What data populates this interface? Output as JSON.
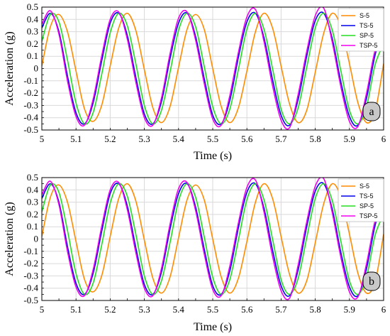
{
  "chart_data": [
    {
      "type": "line",
      "panel_label": "a",
      "xlabel": "Time (s)",
      "ylabel": "Acceleration (g)",
      "xlim": [
        5,
        6
      ],
      "ylim": [
        -0.5,
        0.5
      ],
      "xticks": [
        "5",
        "5.1",
        "5.2",
        "5.3",
        "5.4",
        "5.5",
        "5.6",
        "5.7",
        "5.8",
        "5.9",
        "6"
      ],
      "yticks": [
        "0.5",
        "0.4",
        "0.3",
        "0.2",
        "0.1",
        "0",
        "-0.1",
        "-0.2",
        "-0.3",
        "-0.4",
        "-0.5"
      ],
      "grid": true,
      "legend_position": "top-right",
      "series": [
        {
          "name": "S-5",
          "color": "#ff8c00",
          "x": [
            5.0,
            5.025,
            5.05,
            5.075,
            5.1,
            5.125,
            5.15,
            5.175,
            5.2,
            5.225,
            5.25,
            5.275,
            5.3,
            5.325,
            5.35,
            5.375,
            5.4,
            5.425,
            5.45,
            5.475,
            5.5,
            5.525,
            5.55,
            5.575,
            5.6,
            5.625,
            5.65,
            5.675,
            5.7,
            5.725,
            5.75,
            5.775,
            5.8,
            5.825,
            5.85,
            5.875,
            5.9,
            5.925,
            5.95,
            5.975,
            6.0
          ],
          "y": [
            0.02,
            0.34,
            0.44,
            0.3,
            -0.02,
            -0.33,
            -0.43,
            -0.3,
            0.02,
            0.33,
            0.45,
            0.31,
            -0.01,
            -0.32,
            -0.44,
            -0.31,
            0.01,
            0.32,
            0.44,
            0.32,
            0.0,
            -0.31,
            -0.44,
            -0.32,
            -0.02,
            0.3,
            0.45,
            0.33,
            0.02,
            -0.29,
            -0.44,
            -0.34,
            -0.03,
            0.29,
            0.45,
            0.34,
            0.04,
            -0.28,
            -0.44,
            -0.35,
            0.04
          ]
        },
        {
          "name": "TS-5",
          "color": "#0000ee",
          "x": [
            5.0,
            5.025,
            5.05,
            5.075,
            5.1,
            5.125,
            5.15,
            5.175,
            5.2,
            5.225,
            5.25,
            5.275,
            5.3,
            5.325,
            5.35,
            5.375,
            5.4,
            5.425,
            5.45,
            5.475,
            5.5,
            5.525,
            5.55,
            5.575,
            5.6,
            5.625,
            5.65,
            5.675,
            5.7,
            5.725,
            5.75,
            5.775,
            5.8,
            5.825,
            5.85,
            5.875,
            5.9,
            5.925,
            5.95,
            5.975,
            6.0
          ],
          "y": [
            0.33,
            0.45,
            0.3,
            -0.06,
            -0.36,
            -0.45,
            -0.28,
            0.06,
            0.37,
            0.45,
            0.27,
            -0.07,
            -0.37,
            -0.45,
            -0.27,
            0.08,
            0.37,
            0.45,
            0.26,
            -0.08,
            -0.38,
            -0.45,
            -0.26,
            0.09,
            0.38,
            0.45,
            0.25,
            -0.09,
            -0.38,
            -0.46,
            -0.25,
            0.1,
            0.39,
            0.45,
            0.24,
            -0.11,
            -0.39,
            -0.46,
            -0.24,
            0.11,
            0.33
          ]
        },
        {
          "name": "SP-5",
          "color": "#22dd22",
          "x": [
            5.0,
            5.025,
            5.05,
            5.075,
            5.1,
            5.125,
            5.15,
            5.175,
            5.2,
            5.225,
            5.25,
            5.275,
            5.3,
            5.325,
            5.35,
            5.375,
            5.4,
            5.425,
            5.45,
            5.475,
            5.5,
            5.525,
            5.55,
            5.575,
            5.6,
            5.625,
            5.65,
            5.675,
            5.7,
            5.725,
            5.75,
            5.775,
            5.8,
            5.825,
            5.85,
            5.875,
            5.9,
            5.925,
            5.95,
            5.975,
            6.0
          ],
          "y": [
            0.22,
            0.44,
            0.38,
            0.07,
            -0.28,
            -0.45,
            -0.36,
            -0.05,
            0.29,
            0.45,
            0.35,
            0.04,
            -0.3,
            -0.45,
            -0.34,
            -0.03,
            0.31,
            0.45,
            0.34,
            0.02,
            -0.31,
            -0.45,
            -0.33,
            -0.01,
            0.32,
            0.45,
            0.32,
            0.0,
            -0.33,
            -0.45,
            -0.32,
            0.01,
            0.33,
            0.45,
            0.31,
            -0.02,
            -0.34,
            -0.45,
            -0.31,
            0.03,
            0.2
          ]
        },
        {
          "name": "TSP-5",
          "color": "#ee00ee",
          "x": [
            5.0,
            5.025,
            5.05,
            5.075,
            5.1,
            5.125,
            5.15,
            5.175,
            5.2,
            5.225,
            5.25,
            5.275,
            5.3,
            5.325,
            5.35,
            5.375,
            5.4,
            5.425,
            5.45,
            5.475,
            5.5,
            5.525,
            5.55,
            5.575,
            5.6,
            5.625,
            5.65,
            5.675,
            5.7,
            5.725,
            5.75,
            5.775,
            5.8,
            5.825,
            5.85,
            5.875,
            5.9,
            5.925,
            5.95,
            5.975,
            6.0
          ],
          "y": [
            0.36,
            0.47,
            0.28,
            -0.1,
            -0.39,
            -0.46,
            -0.25,
            0.1,
            0.4,
            0.46,
            0.24,
            -0.11,
            -0.4,
            -0.46,
            -0.24,
            0.12,
            0.41,
            0.46,
            0.23,
            -0.12,
            -0.41,
            -0.46,
            -0.22,
            0.13,
            0.42,
            0.48,
            0.22,
            -0.14,
            -0.42,
            -0.48,
            -0.21,
            0.14,
            0.43,
            0.49,
            0.21,
            -0.15,
            -0.43,
            -0.47,
            -0.2,
            0.15,
            0.35
          ]
        }
      ]
    },
    {
      "type": "line",
      "panel_label": "b",
      "xlabel": "Time (s)",
      "ylabel": "Acceleration (g)",
      "xlim": [
        5,
        6
      ],
      "ylim": [
        -0.5,
        0.5
      ],
      "xticks": [
        "5",
        "5.1",
        "5.2",
        "5.3",
        "5.4",
        "5.5",
        "5.6",
        "5.7",
        "5.8",
        "5.9",
        "6"
      ],
      "yticks": [
        "0.5",
        "0.4",
        "0.3",
        "0.2",
        "0.1",
        "0",
        "-0.1",
        "-0.2",
        "-0.3",
        "-0.4",
        "-0.5"
      ],
      "grid": true,
      "legend_position": "top-right",
      "series": [
        {
          "name": "S-5",
          "color": "#ff8c00",
          "x": [
            5.0,
            5.025,
            5.05,
            5.075,
            5.1,
            5.125,
            5.15,
            5.175,
            5.2,
            5.225,
            5.25,
            5.275,
            5.3,
            5.325,
            5.35,
            5.375,
            5.4,
            5.425,
            5.45,
            5.475,
            5.5,
            5.525,
            5.55,
            5.575,
            5.6,
            5.625,
            5.65,
            5.675,
            5.7,
            5.725,
            5.75,
            5.775,
            5.8,
            5.825,
            5.85,
            5.875,
            5.9,
            5.925,
            5.95,
            5.975,
            6.0
          ],
          "y": [
            0.02,
            0.34,
            0.44,
            0.3,
            -0.02,
            -0.33,
            -0.43,
            -0.3,
            0.02,
            0.33,
            0.45,
            0.31,
            -0.01,
            -0.32,
            -0.44,
            -0.31,
            0.01,
            0.32,
            0.44,
            0.32,
            0.0,
            -0.31,
            -0.44,
            -0.32,
            -0.02,
            0.3,
            0.45,
            0.33,
            0.02,
            -0.29,
            -0.44,
            -0.34,
            -0.03,
            0.29,
            0.45,
            0.34,
            0.04,
            -0.28,
            -0.44,
            -0.35,
            0.04
          ]
        },
        {
          "name": "TS-5",
          "color": "#0000ee",
          "x": [
            5.0,
            5.025,
            5.05,
            5.075,
            5.1,
            5.125,
            5.15,
            5.175,
            5.2,
            5.225,
            5.25,
            5.275,
            5.3,
            5.325,
            5.35,
            5.375,
            5.4,
            5.425,
            5.45,
            5.475,
            5.5,
            5.525,
            5.55,
            5.575,
            5.6,
            5.625,
            5.65,
            5.675,
            5.7,
            5.725,
            5.75,
            5.775,
            5.8,
            5.825,
            5.85,
            5.875,
            5.9,
            5.925,
            5.95,
            5.975,
            6.0
          ],
          "y": [
            0.33,
            0.45,
            0.3,
            -0.06,
            -0.36,
            -0.45,
            -0.28,
            0.06,
            0.37,
            0.45,
            0.27,
            -0.07,
            -0.37,
            -0.45,
            -0.27,
            0.08,
            0.37,
            0.45,
            0.26,
            -0.08,
            -0.38,
            -0.45,
            -0.26,
            0.09,
            0.38,
            0.45,
            0.25,
            -0.09,
            -0.38,
            -0.46,
            -0.25,
            0.1,
            0.39,
            0.45,
            0.24,
            -0.11,
            -0.39,
            -0.46,
            -0.24,
            0.11,
            0.33
          ]
        },
        {
          "name": "SP-5",
          "color": "#22dd22",
          "x": [
            5.0,
            5.025,
            5.05,
            5.075,
            5.1,
            5.125,
            5.15,
            5.175,
            5.2,
            5.225,
            5.25,
            5.275,
            5.3,
            5.325,
            5.35,
            5.375,
            5.4,
            5.425,
            5.45,
            5.475,
            5.5,
            5.525,
            5.55,
            5.575,
            5.6,
            5.625,
            5.65,
            5.675,
            5.7,
            5.725,
            5.75,
            5.775,
            5.8,
            5.825,
            5.85,
            5.875,
            5.9,
            5.925,
            5.95,
            5.975,
            6.0
          ],
          "y": [
            0.22,
            0.44,
            0.38,
            0.07,
            -0.28,
            -0.45,
            -0.36,
            -0.05,
            0.29,
            0.45,
            0.35,
            0.04,
            -0.3,
            -0.45,
            -0.34,
            -0.03,
            0.31,
            0.45,
            0.34,
            0.02,
            -0.31,
            -0.45,
            -0.33,
            -0.01,
            0.32,
            0.45,
            0.32,
            0.0,
            -0.33,
            -0.45,
            -0.32,
            0.01,
            0.33,
            0.45,
            0.31,
            -0.02,
            -0.34,
            -0.45,
            -0.31,
            0.03,
            0.2
          ]
        },
        {
          "name": "TSP-5",
          "color": "#ee00ee",
          "x": [
            5.0,
            5.025,
            5.05,
            5.075,
            5.1,
            5.125,
            5.15,
            5.175,
            5.2,
            5.225,
            5.25,
            5.275,
            5.3,
            5.325,
            5.35,
            5.375,
            5.4,
            5.425,
            5.45,
            5.475,
            5.5,
            5.525,
            5.55,
            5.575,
            5.6,
            5.625,
            5.65,
            5.675,
            5.7,
            5.725,
            5.75,
            5.775,
            5.8,
            5.825,
            5.85,
            5.875,
            5.9,
            5.925,
            5.95,
            5.975,
            6.0
          ],
          "y": [
            0.36,
            0.47,
            0.28,
            -0.1,
            -0.39,
            -0.46,
            -0.25,
            0.1,
            0.4,
            0.46,
            0.24,
            -0.11,
            -0.4,
            -0.46,
            -0.24,
            0.12,
            0.41,
            0.46,
            0.23,
            -0.12,
            -0.41,
            -0.46,
            -0.22,
            0.13,
            0.42,
            0.48,
            0.22,
            -0.14,
            -0.42,
            -0.48,
            -0.21,
            0.14,
            0.43,
            0.49,
            0.21,
            -0.15,
            -0.43,
            -0.47,
            -0.2,
            0.15,
            0.35
          ]
        }
      ]
    }
  ]
}
